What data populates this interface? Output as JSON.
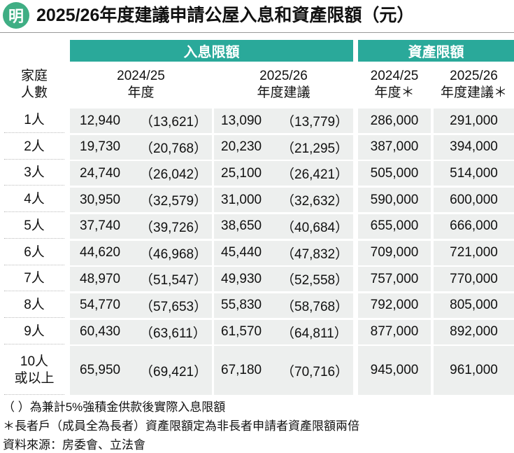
{
  "header": {
    "logo": "明",
    "title": "2025/26年度建議申請公屋入息和資產限額（元）"
  },
  "table": {
    "group_headers": [
      "入息限額",
      "資產限額"
    ],
    "column_headers": [
      [
        "家庭",
        "人數"
      ],
      [
        "2024/25",
        "年度"
      ],
      [
        "2025/26",
        "年度建議"
      ],
      [
        "2024/25",
        "年度＊"
      ],
      [
        "2025/26",
        "年度建議＊"
      ]
    ],
    "rows": [
      {
        "label": [
          "1人"
        ],
        "income_2024": [
          "12,940",
          "（13,621）"
        ],
        "income_2025": [
          "13,090",
          "（13,779）"
        ],
        "asset_2024": "286,000",
        "asset_2025": "291,000"
      },
      {
        "label": [
          "2人"
        ],
        "income_2024": [
          "19,730",
          "（20,768）"
        ],
        "income_2025": [
          "20,230",
          "（21,295）"
        ],
        "asset_2024": "387,000",
        "asset_2025": "394,000"
      },
      {
        "label": [
          "3人"
        ],
        "income_2024": [
          "24,740",
          "（26,042）"
        ],
        "income_2025": [
          "25,100",
          "（26,421）"
        ],
        "asset_2024": "505,000",
        "asset_2025": "514,000"
      },
      {
        "label": [
          "4人"
        ],
        "income_2024": [
          "30,950",
          "（32,579）"
        ],
        "income_2025": [
          "31,000",
          "（32,632）"
        ],
        "asset_2024": "590,000",
        "asset_2025": "600,000"
      },
      {
        "label": [
          "5人"
        ],
        "income_2024": [
          "37,740",
          "（39,726）"
        ],
        "income_2025": [
          "38,650",
          "（40,684）"
        ],
        "asset_2024": "655,000",
        "asset_2025": "666,000"
      },
      {
        "label": [
          "6人"
        ],
        "income_2024": [
          "44,620",
          "（46,968）"
        ],
        "income_2025": [
          "45,440",
          "（47,832）"
        ],
        "asset_2024": "709,000",
        "asset_2025": "721,000"
      },
      {
        "label": [
          "7人"
        ],
        "income_2024": [
          "48,970",
          "（51,547）"
        ],
        "income_2025": [
          "49,930",
          "（52,558）"
        ],
        "asset_2024": "757,000",
        "asset_2025": "770,000"
      },
      {
        "label": [
          "8人"
        ],
        "income_2024": [
          "54,770",
          "（57,653）"
        ],
        "income_2025": [
          "55,830",
          "（58,768）"
        ],
        "asset_2024": "792,000",
        "asset_2025": "805,000"
      },
      {
        "label": [
          "9人"
        ],
        "income_2024": [
          "60,430",
          "（63,611）"
        ],
        "income_2025": [
          "61,570",
          "（64,811）"
        ],
        "asset_2024": "877,000",
        "asset_2025": "892,000"
      },
      {
        "label": [
          "10人",
          "或以上"
        ],
        "income_2024": [
          "65,950",
          "（69,421）"
        ],
        "income_2025": [
          "67,180",
          "（70,716）"
        ],
        "asset_2024": "945,000",
        "asset_2025": "961,000"
      }
    ]
  },
  "footnotes": [
    "（ ）為兼計5%強積金供款後實際入息限額",
    "＊長者戶（成員全為長者）資產限額定為非長者申請者資產限額兩倍",
    "資料來源：房委會、立法會"
  ]
}
